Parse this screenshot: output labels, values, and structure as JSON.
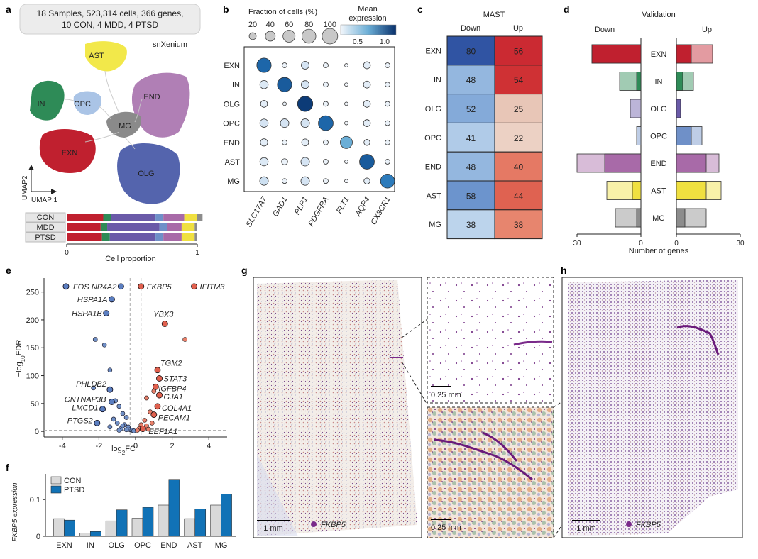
{
  "panel_letters": {
    "a": "a",
    "b": "b",
    "c": "c",
    "d": "d",
    "e": "e",
    "f": "f",
    "g": "g",
    "h": "h"
  },
  "panel_a": {
    "summary_line1": "18 Samples, 523,314 cells, 366 genes,",
    "summary_line2": "10 CON, 4 MDD, 4 PTSD",
    "platform": "snXenium",
    "clusters": [
      "AST",
      "IN",
      "OPC",
      "END",
      "MG",
      "EXN",
      "OLG"
    ],
    "umap_x": "UMAP 1",
    "umap_y": "UMAP2",
    "proportion_rows": [
      "CON",
      "MDD",
      "PTSD"
    ],
    "proportion_xlabel": "Cell proportion",
    "proportion_ticks": [
      "0",
      "1"
    ]
  },
  "chart_data": [
    {
      "id": "b",
      "type": "dotplot",
      "rows": [
        "EXN",
        "IN",
        "OLG",
        "OPC",
        "END",
        "AST",
        "MG"
      ],
      "genes": [
        "SLC17A7",
        "GAD1",
        "PLP1",
        "PDGFRA",
        "FLT1",
        "AQP4",
        "CX3CR1"
      ],
      "size_legend_title": "Fraction of cells (%)",
      "size_legend_values": [
        20,
        40,
        60,
        80,
        100
      ],
      "color_legend_title_line1": "Mean",
      "color_legend_title_line2": "expression",
      "color_ticks": [
        "0.5",
        "1.0"
      ],
      "fraction": [
        [
          85,
          10,
          25,
          10,
          5,
          20,
          10
        ],
        [
          28,
          85,
          25,
          10,
          5,
          20,
          10
        ],
        [
          20,
          5,
          95,
          10,
          5,
          20,
          10
        ],
        [
          28,
          30,
          30,
          90,
          5,
          20,
          10
        ],
        [
          22,
          10,
          20,
          10,
          60,
          15,
          10
        ],
        [
          28,
          15,
          30,
          10,
          5,
          90,
          10
        ],
        [
          30,
          10,
          30,
          10,
          5,
          15,
          80
        ]
      ],
      "expression": [
        [
          0.95,
          0.05,
          0.2,
          0.05,
          0.0,
          0.1,
          0.05
        ],
        [
          0.15,
          1.0,
          0.2,
          0.05,
          0.0,
          0.1,
          0.05
        ],
        [
          0.1,
          0.05,
          1.15,
          0.05,
          0.0,
          0.1,
          0.05
        ],
        [
          0.2,
          0.2,
          0.2,
          0.95,
          0.0,
          0.1,
          0.05
        ],
        [
          0.1,
          0.05,
          0.1,
          0.05,
          0.6,
          0.1,
          0.05
        ],
        [
          0.15,
          0.05,
          0.2,
          0.05,
          0.0,
          1.0,
          0.05
        ],
        [
          0.25,
          0.05,
          0.2,
          0.05,
          0.0,
          0.1,
          0.85
        ]
      ]
    },
    {
      "id": "c",
      "type": "heatmap",
      "title": "MAST",
      "columns": [
        "Down",
        "Up"
      ],
      "rows": [
        "EXN",
        "IN",
        "OLG",
        "OPC",
        "END",
        "AST",
        "MG"
      ],
      "down": [
        80,
        48,
        52,
        41,
        48,
        58,
        38
      ],
      "up": [
        56,
        54,
        25,
        22,
        40,
        44,
        38
      ]
    },
    {
      "id": "d",
      "type": "bar",
      "title": "Validation",
      "left_label": "Down",
      "right_label": "Up",
      "xlabel": "Number of genes",
      "ticks": [
        "30",
        "0",
        "0",
        "30"
      ],
      "categories": [
        "EXN",
        "IN",
        "OLG",
        "OPC",
        "END",
        "AST",
        "MG"
      ],
      "cluster_colors": [
        "#c0202f",
        "#2e8b57",
        "#6a5aa8",
        "#6f90c8",
        "#a86aa8",
        "#f0e040",
        "#8c8c8c"
      ],
      "down_validated": [
        23,
        2,
        0,
        0,
        17,
        4,
        2
      ],
      "down_total": [
        23,
        10,
        5,
        2,
        30,
        16,
        12
      ],
      "up_validated": [
        7,
        3,
        2,
        7,
        14,
        14,
        4
      ],
      "up_total": [
        17,
        8,
        2,
        12,
        20,
        21,
        14
      ],
      "xlim": [
        0,
        30
      ]
    },
    {
      "id": "e",
      "type": "scatter",
      "xlabel": "log2FC",
      "ylabel": "−log10FDR",
      "xlim": [
        -5,
        5
      ],
      "ylim": [
        -10,
        275
      ],
      "x_ticks": [
        -4,
        -2,
        0,
        2,
        4
      ],
      "y_ticks": [
        0,
        50,
        100,
        150,
        200,
        250
      ],
      "labeled_down": [
        {
          "name": "FOS",
          "x": -3.8,
          "y": 260
        },
        {
          "name": "NR4A2",
          "x": -0.8,
          "y": 260
        },
        {
          "name": "HSPA1A",
          "x": -1.3,
          "y": 237
        },
        {
          "name": "HSPA1B",
          "x": -1.6,
          "y": 212
        },
        {
          "name": "PHLDB2",
          "x": -1.4,
          "y": 75
        },
        {
          "name": "CNTNAP3B",
          "x": -1.3,
          "y": 53
        },
        {
          "name": "LMCD1",
          "x": -1.8,
          "y": 40
        },
        {
          "name": "PTGS2",
          "x": -2.1,
          "y": 15
        }
      ],
      "labeled_up": [
        {
          "name": "FKBP5",
          "x": 0.3,
          "y": 260
        },
        {
          "name": "IFITM3",
          "x": 3.2,
          "y": 260
        },
        {
          "name": "YBX3",
          "x": 1.6,
          "y": 193
        },
        {
          "name": "TGM2",
          "x": 1.2,
          "y": 110
        },
        {
          "name": "STAT3",
          "x": 1.3,
          "y": 95
        },
        {
          "name": "IGFBP4",
          "x": 1.1,
          "y": 80
        },
        {
          "name": "GJA1",
          "x": 1.3,
          "y": 65
        },
        {
          "name": "COL4A1",
          "x": 1.2,
          "y": 45
        },
        {
          "name": "PECAM1",
          "x": 1.0,
          "y": 30
        },
        {
          "name": "EEF1A1",
          "x": 0.4,
          "y": 5
        }
      ],
      "other_down": [
        [
          -2.2,
          165
        ],
        [
          -1.7,
          155
        ],
        [
          -1.4,
          110
        ],
        [
          -2.3,
          78
        ],
        [
          -1.1,
          55
        ],
        [
          -0.9,
          45
        ],
        [
          -0.7,
          32
        ],
        [
          -0.5,
          25
        ],
        [
          -1.2,
          22
        ],
        [
          -1.0,
          15
        ],
        [
          -0.6,
          12
        ],
        [
          -0.4,
          8
        ],
        [
          -0.8,
          5
        ],
        [
          -0.3,
          3
        ],
        [
          -1.4,
          8
        ],
        [
          -0.2,
          2
        ],
        [
          -0.5,
          3
        ],
        [
          -0.9,
          2
        ],
        [
          -0.1,
          1
        ],
        [
          -0.7,
          10
        ]
      ],
      "other_up": [
        [
          2.7,
          165
        ],
        [
          1.0,
          72
        ],
        [
          0.6,
          60
        ],
        [
          0.8,
          35
        ],
        [
          0.5,
          20
        ],
        [
          0.3,
          12
        ],
        [
          0.6,
          10
        ],
        [
          0.2,
          5
        ],
        [
          0.9,
          15
        ],
        [
          0.4,
          3
        ],
        [
          0.1,
          2
        ],
        [
          0.7,
          4
        ]
      ]
    },
    {
      "id": "f",
      "type": "bar",
      "ylabel": "FKBP5 expression",
      "categories": [
        "EXN",
        "IN",
        "OLG",
        "OPC",
        "END",
        "AST",
        "MG"
      ],
      "series": [
        {
          "name": "CON",
          "color": "#d9d9d9",
          "values": [
            0.048,
            0.009,
            0.042,
            0.049,
            0.085,
            0.048,
            0.085
          ]
        },
        {
          "name": "PTSD",
          "color": "#1172b6",
          "values": [
            0.044,
            0.013,
            0.072,
            0.079,
            0.155,
            0.074,
            0.115
          ]
        }
      ],
      "ylim": [
        0,
        0.17
      ],
      "y_ticks": [
        0,
        0.1
      ],
      "y_tick_labels": [
        "0",
        "0.1"
      ]
    }
  ],
  "panel_g": {
    "scale_main": "1 mm",
    "scale_zoom1": "0.25 mm",
    "scale_zoom2": "0.25 mm",
    "gene": "FKBP5"
  },
  "panel_h": {
    "scale": "1 mm",
    "gene": "FKBP5"
  }
}
